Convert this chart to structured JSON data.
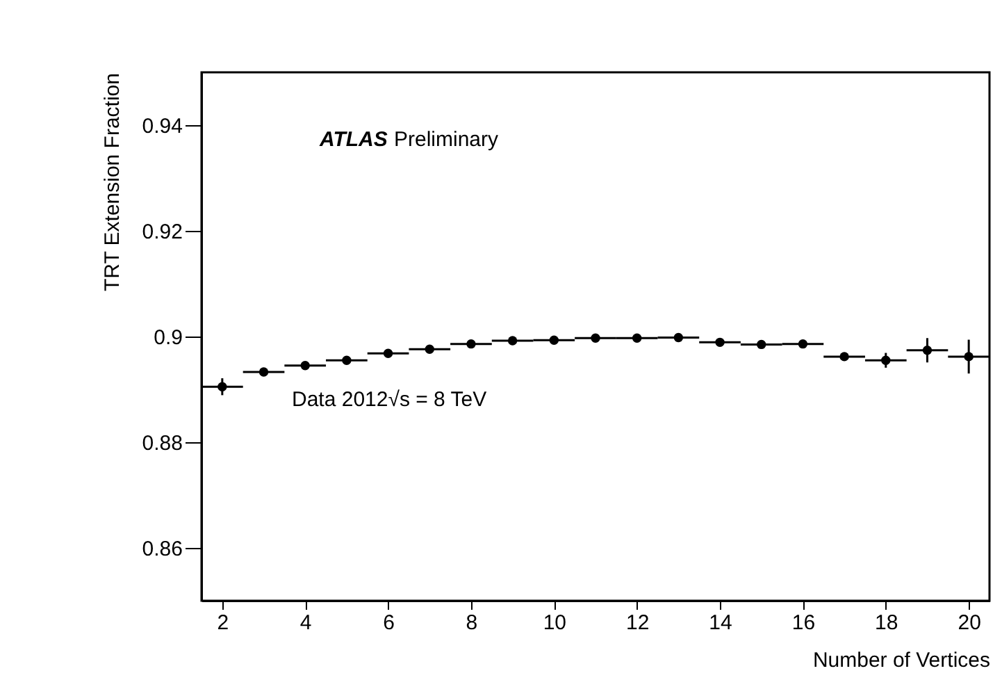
{
  "chart_data": {
    "type": "scatter",
    "xlabel": "Number of Vertices",
    "ylabel": "TRT Extension Fraction",
    "annotations": [
      "ATLAS",
      "Preliminary",
      "Data 2012√s = 8 TeV"
    ],
    "x": [
      2,
      3,
      4,
      5,
      6,
      7,
      8,
      9,
      10,
      11,
      12,
      13,
      14,
      15,
      16,
      17,
      18,
      19,
      20
    ],
    "series": [
      {
        "color": "#000000",
        "values": [
          0.8905,
          0.8933,
          0.8945,
          0.8955,
          0.8968,
          0.8976,
          0.8986,
          0.8992,
          0.8993,
          0.8997,
          0.8997,
          0.8998,
          0.8989,
          0.8985,
          0.8986,
          0.8962,
          0.8955,
          0.8974,
          0.8962
        ],
        "errors": [
          0.0016,
          null,
          null,
          null,
          null,
          null,
          null,
          null,
          null,
          null,
          null,
          null,
          null,
          null,
          null,
          0.0005,
          0.0014,
          0.0023,
          0.0032
        ],
        "xerrors": [
          0.5,
          0.5,
          0.5,
          0.5,
          0.5,
          0.5,
          0.5,
          0.5,
          0.5,
          0.5,
          0.5,
          0.5,
          0.5,
          0.5,
          0.5,
          0.5,
          0.5,
          0.5,
          0.5
        ]
      }
    ],
    "xlim": [
      1.5,
      20.5
    ],
    "ylim": [
      0.85,
      0.95
    ],
    "xticks": [
      2,
      4,
      6,
      8,
      10,
      12,
      14,
      16,
      18,
      20
    ],
    "yticks": [
      0.86,
      0.88,
      0.9,
      0.92,
      0.94
    ],
    "marker": "circle",
    "grid": false
  }
}
